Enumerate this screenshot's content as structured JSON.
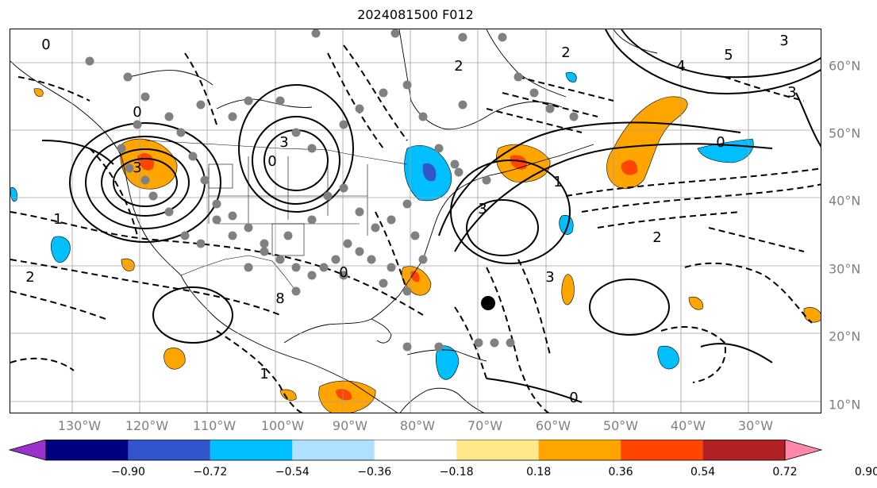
{
  "title": "2024081500 F012",
  "lon_labels": [
    "130°W",
    "120°W",
    "110°W",
    "100°W",
    "90°W",
    "80°W",
    "70°W",
    "60°W",
    "50°W",
    "40°W",
    "30°W"
  ],
  "lat_labels": [
    "60°N",
    "50°N",
    "40°N",
    "30°N",
    "20°N",
    "10°N"
  ],
  "colorbar": {
    "ticks": [
      "−0.90",
      "−0.72",
      "−0.54",
      "−0.36",
      "−0.18",
      "0.18",
      "0.36",
      "0.54",
      "0.72",
      "0.90"
    ],
    "colors": [
      "#9933cc",
      "#000080",
      "#3355cc",
      "#00bfff",
      "#b0e0ff",
      "#ffffff",
      "#ffe88a",
      "#ffa500",
      "#ff4500",
      "#b22222",
      "#ff88aa"
    ]
  },
  "contour_labels": [
    "3",
    "3",
    "3",
    "3",
    "3",
    "2",
    "2",
    "2",
    "2",
    "1",
    "1",
    "1",
    "0",
    "0",
    "0",
    "0",
    "0",
    "0",
    "5",
    "4",
    "8",
    "3"
  ],
  "colors": {
    "land_border": "#000000",
    "grid": "#a0a0a0",
    "station_dot": "#808080",
    "tick_label": "#808080"
  }
}
